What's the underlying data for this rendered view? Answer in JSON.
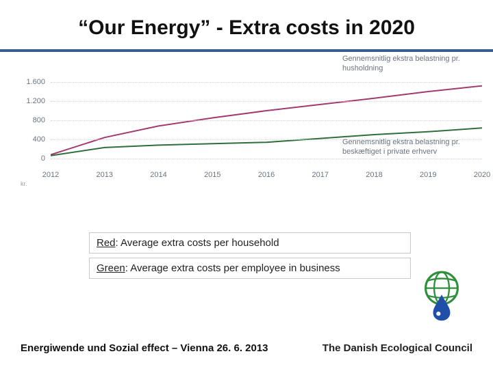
{
  "title": "“Our Energy” - Extra costs in 2020",
  "title_rule_color": "#365f91",
  "chart": {
    "type": "line",
    "background_color": "#ffffff",
    "grid_color": "#d0d4da",
    "axis_label_color": "#6b7380",
    "axis_font_size": 11,
    "y": {
      "unit": "kr.",
      "min": -200,
      "max": 1800,
      "ticks": [
        0,
        400,
        800,
        1200,
        1600
      ]
    },
    "x": {
      "values": [
        2012,
        2013,
        2014,
        2015,
        2016,
        2017,
        2018,
        2019,
        2020
      ]
    },
    "series": [
      {
        "id": "household",
        "color": "#a23a6f",
        "label": "Gennemsnitlig ekstra belastning pr. husholdning",
        "label_pos": "top-right",
        "line_width": 2,
        "values": [
          80,
          440,
          680,
          850,
          1000,
          1130,
          1260,
          1400,
          1520
        ]
      },
      {
        "id": "business",
        "color": "#2f6e3a",
        "label": "Gennemsnitlig ekstra belastning pr. beskæftiget i private erhverv",
        "label_pos": "bottom-right",
        "line_width": 2,
        "values": [
          60,
          230,
          280,
          310,
          340,
          420,
          500,
          560,
          640
        ]
      }
    ]
  },
  "legend": {
    "line1_u": "Red",
    "line1_rest": ": Average extra costs per household",
    "line2_u": "Green",
    "line2_rest": ": Average extra costs per employee in business"
  },
  "footer": {
    "left": "Energiwende und Sozial effect – Vienna 26. 6. 2013",
    "right": "The Danish Ecological Council"
  },
  "logo": {
    "globe_color": "#2f8f3a",
    "drop_color": "#1f4fa8"
  }
}
